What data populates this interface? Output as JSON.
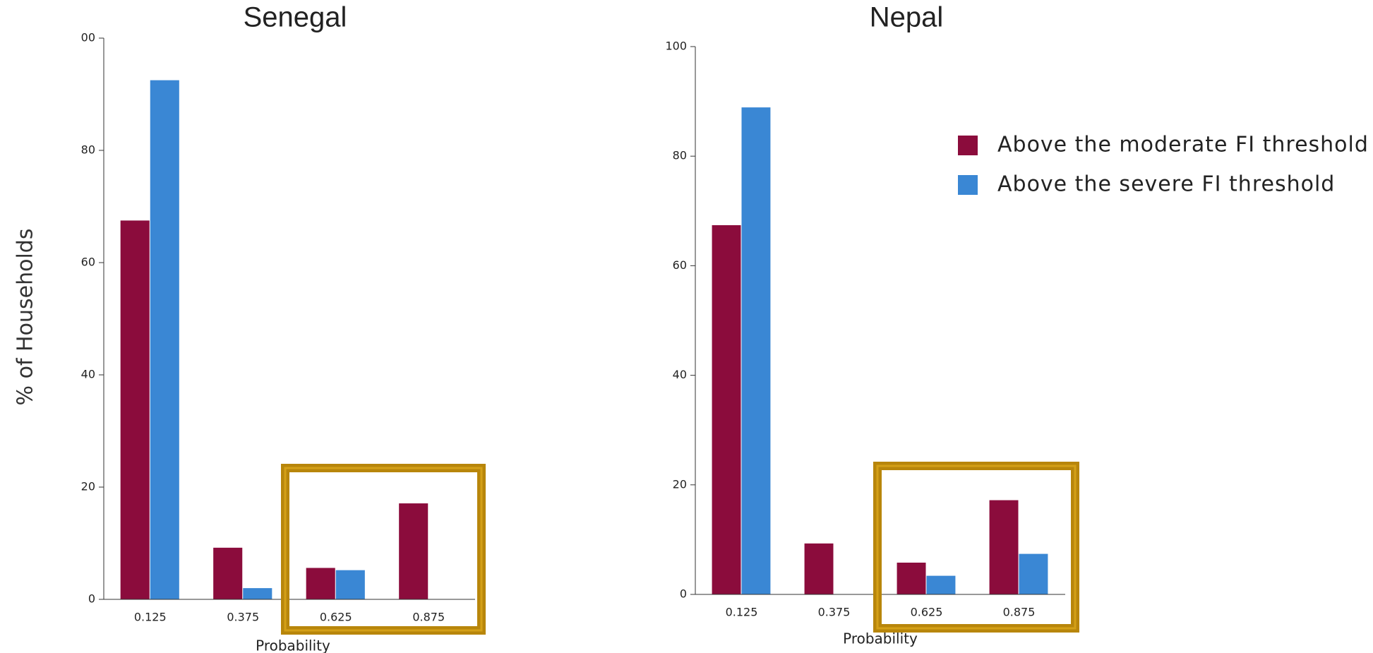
{
  "chart_data": [
    {
      "type": "bar",
      "title": "Senegal",
      "x_label": "Probability",
      "y_label": "% of Households",
      "categories": [
        "0.125",
        "0.375",
        "0.625",
        "0.875"
      ],
      "series": [
        {
          "color": "#8b0c3c",
          "values": [
            67.5,
            9.2,
            5.6,
            17.1
          ]
        },
        {
          "color": "#3a87d4",
          "values": [
            92.5,
            2.0,
            5.2,
            0
          ]
        }
      ],
      "ylim": [
        0,
        100
      ],
      "yticks": [
        0,
        20,
        40,
        60,
        80,
        {
          "value": 100,
          "label": "00"
        }
      ]
    },
    {
      "type": "bar",
      "title": "Nepal",
      "x_label": "Probability",
      "categories": [
        "0.125",
        "0.375",
        "0.625",
        "0.875"
      ],
      "series": [
        {
          "name": "Above the moderate FI threshold",
          "color": "#8b0c3c",
          "values": [
            67.4,
            9.3,
            5.8,
            17.2
          ]
        },
        {
          "name": "Above the severe FI threshold",
          "color": "#3a87d4",
          "values": [
            88.9,
            0,
            3.4,
            7.4
          ]
        }
      ],
      "ylim": [
        0,
        100
      ],
      "yticks": [
        0,
        20,
        40,
        60,
        80,
        100
      ]
    }
  ]
}
